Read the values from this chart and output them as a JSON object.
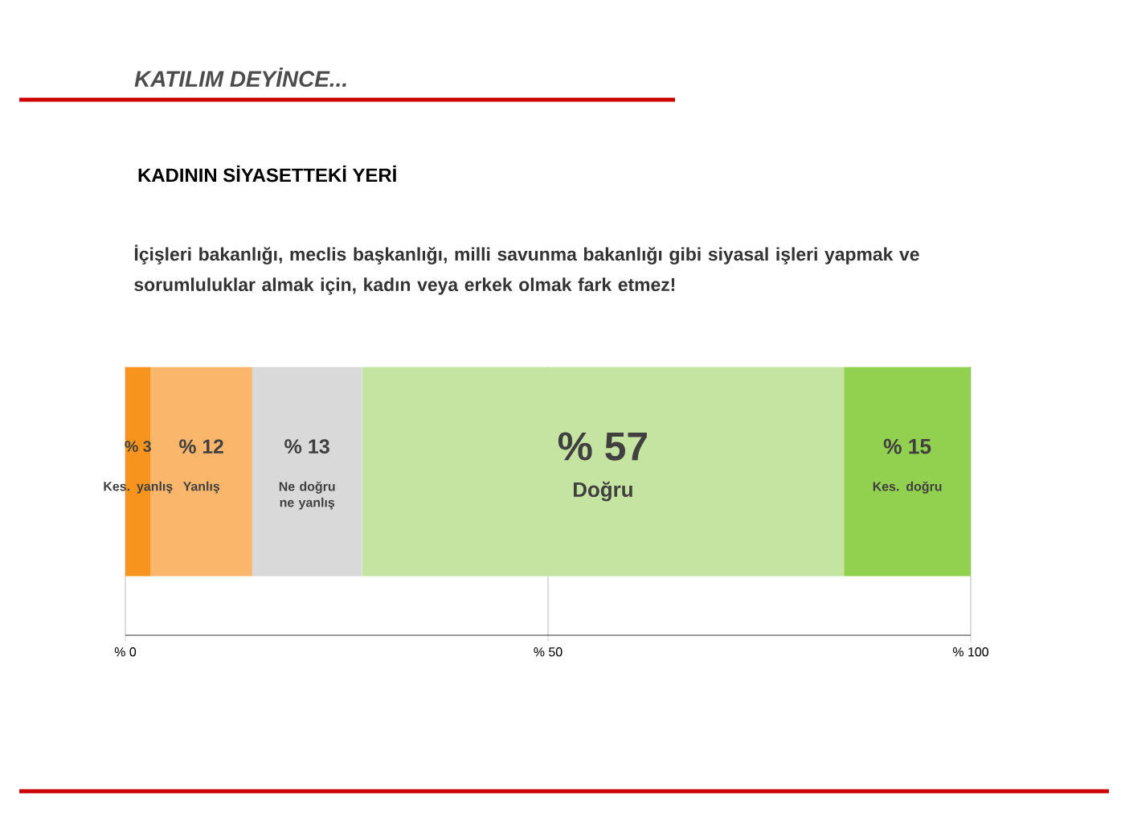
{
  "chart_data": {
    "type": "bar",
    "orientation": "horizontal",
    "stacked": true,
    "title": "KADININ SİYASETTEKİ YERİ",
    "subtitle": "İçişleri bakanlığı, meclis başkanlığı, milli savunma bakanlığı gibi siyasal işleri yapmak ve sorumluluklar almak için, kadın veya erkek olmak fark etmez!",
    "annotations": [
      "KATILIM DEYİNCE..."
    ],
    "categories": [
      null
    ],
    "series": [
      {
        "name": "Kes. yanlış",
        "color": "#f7941d",
        "values": [
          3
        ],
        "value_labels": [
          "% 3"
        ]
      },
      {
        "name": "Yanlış",
        "color": "#fab66a",
        "values": [
          12
        ],
        "value_labels": [
          "% 12"
        ]
      },
      {
        "name": "Ne doğru ne yanlış",
        "color": "#d9d9d9",
        "values": [
          13
        ],
        "value_labels": [
          "% 13"
        ]
      },
      {
        "name": "Doğru",
        "color": "#c6e4a1",
        "values": [
          57
        ],
        "value_labels": [
          "% 57"
        ]
      },
      {
        "name": "Kes. doğru",
        "color": "#92d050",
        "values": [
          15
        ],
        "value_labels": [
          "% 15"
        ]
      }
    ],
    "xlim": [
      0,
      100
    ],
    "xticks": [
      {
        "value": 0,
        "label": "% 0"
      },
      {
        "value": 50,
        "label": "% 50"
      },
      {
        "value": 100,
        "label": "% 100"
      }
    ],
    "grid": "x",
    "legend": false
  }
}
